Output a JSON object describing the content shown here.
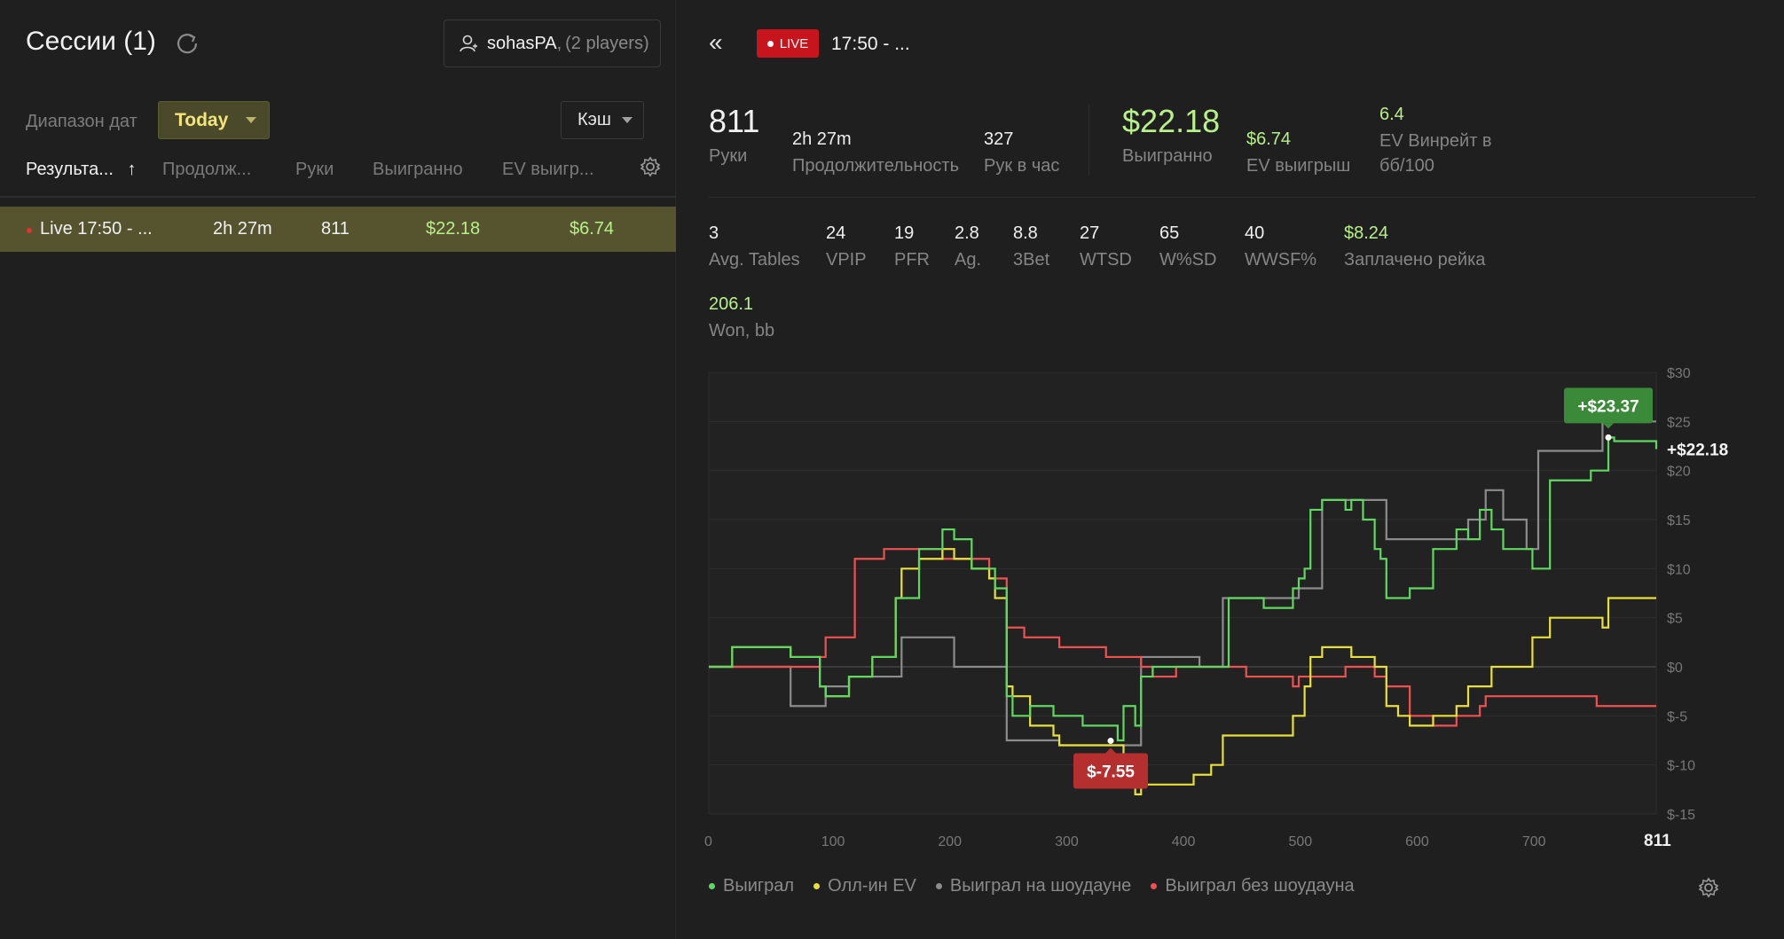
{
  "sidebar": {
    "title": "Сессии (1)",
    "player_name": "sohasPA",
    "player_count": "(2 players)",
    "date_range_label": "Диапазон дат",
    "date_range_value": "Today",
    "game_type": "Кэш",
    "columns": [
      "Результа...",
      "Продолж...",
      "Руки",
      "Выигранно",
      "EV выигр..."
    ],
    "sort_arrow": "↑",
    "rows": [
      {
        "session": "Live 17:50 - ...",
        "duration": "2h 27m",
        "hands": "811",
        "won": "$22.18",
        "ev_won": "$6.74"
      }
    ]
  },
  "header": {
    "back": "«",
    "live_label": "LIVE",
    "session_title": "17:50 - ..."
  },
  "stats": {
    "hands": {
      "value": "811",
      "label": "Руки"
    },
    "duration": {
      "value": "2h 27m",
      "label": "Продолжительность"
    },
    "hands_per_hour": {
      "value": "327",
      "label": "Рук в час"
    },
    "won": {
      "value": "$22.18",
      "label": "Выигранно"
    },
    "ev_won": {
      "value": "$6.74",
      "label": "EV выигрыш"
    },
    "ev_winrate": {
      "value": "6.4",
      "label": "EV Винрейт в бб/100"
    },
    "avg_tables": {
      "value": "3",
      "label": "Avg. Tables"
    },
    "vpip": {
      "value": "24",
      "label": "VPIP"
    },
    "pfr": {
      "value": "19",
      "label": "PFR"
    },
    "ag": {
      "value": "2.8",
      "label": "Ag."
    },
    "threebet": {
      "value": "8.8",
      "label": "3Bet"
    },
    "wtsd": {
      "value": "27",
      "label": "WTSD"
    },
    "wsd": {
      "value": "65",
      "label": "W%SD"
    },
    "wwsf": {
      "value": "40",
      "label": "WWSF%"
    },
    "rake": {
      "value": "$8.24",
      "label": "Заплачено рейка"
    },
    "won_bb": {
      "value": "206.1",
      "label": "Won, bb"
    }
  },
  "legend": [
    {
      "name": "Выиграл",
      "color": "#5fd860"
    },
    {
      "name": "Олл-ин EV",
      "color": "#e8e03a"
    },
    {
      "name": "Выиграл на шоудауне",
      "color": "#8c8c8c"
    },
    {
      "name": "Выиграл без шоудауна",
      "color": "#ef5050"
    }
  ],
  "chart_data": {
    "type": "line",
    "x_ticks": [
      0,
      100,
      200,
      300,
      400,
      500,
      600,
      700,
      811
    ],
    "y_tick_labels": [
      "$30",
      "$25",
      "$20",
      "$15",
      "$10",
      "$5",
      "$0",
      "$-5",
      "$-10",
      "$-15"
    ],
    "ylim": [
      -15,
      30
    ],
    "xlim": [
      0,
      811
    ],
    "max_label": "+$23.37",
    "min_label": "$-7.55",
    "final_label": "+$22.18",
    "max_point": {
      "x": 770,
      "y": 23.37
    },
    "min_point": {
      "x": 344,
      "y": -7.55
    },
    "series": [
      {
        "name": "Выиграл",
        "color": "#5fd860",
        "x": [
          0,
          20,
          40,
          70,
          90,
          95,
          100,
          120,
          140,
          160,
          165,
          180,
          200,
          210,
          225,
          240,
          245,
          255,
          260,
          275,
          295,
          300,
          320,
          340,
          350,
          355,
          365,
          370,
          380,
          395,
          415,
          430,
          440,
          445,
          460,
          475,
          500,
          505,
          510,
          515,
          525,
          545,
          550,
          560,
          570,
          575,
          580,
          590,
          600,
          620,
          640,
          650,
          660,
          670,
          680,
          700,
          705,
          720,
          735,
          755,
          765,
          770,
          775,
          790,
          800,
          811
        ],
        "y": [
          0,
          2,
          2,
          1,
          1,
          -2,
          -3,
          -1,
          1,
          7,
          7,
          12,
          14,
          13,
          10,
          10,
          8,
          -3,
          -5,
          -4,
          -5,
          -5,
          -6,
          -6,
          -7.5,
          -4,
          -6,
          -1,
          0,
          0,
          0,
          0,
          0,
          7,
          7,
          6,
          8,
          9,
          10,
          16,
          17,
          16,
          17,
          15,
          12,
          11,
          7,
          7,
          8,
          12,
          14,
          13,
          16,
          14,
          12,
          12,
          10,
          19,
          19,
          20,
          20,
          23.37,
          23,
          23,
          23,
          22.18
        ]
      },
      {
        "name": "Олл-ин EV",
        "color": "#e8e03a",
        "x": [
          0,
          20,
          40,
          70,
          90,
          95,
          100,
          120,
          140,
          160,
          165,
          180,
          200,
          210,
          225,
          240,
          245,
          255,
          260,
          275,
          295,
          300,
          320,
          340,
          350,
          355,
          365,
          370,
          380,
          395,
          415,
          430,
          440,
          445,
          460,
          475,
          500,
          505,
          510,
          515,
          525,
          545,
          550,
          560,
          570,
          575,
          580,
          590,
          600,
          620,
          640,
          650,
          660,
          670,
          680,
          700,
          705,
          720,
          735,
          755,
          765,
          770,
          775,
          790,
          800,
          811
        ],
        "y": [
          0,
          2,
          2,
          1,
          1,
          -2,
          -3,
          -1,
          1,
          7,
          10,
          11,
          12,
          11,
          10,
          9,
          7,
          -2,
          -3,
          -6,
          -7,
          -8,
          -8,
          -8,
          -8,
          -12,
          -13,
          -12,
          -12,
          -12,
          -11,
          -10,
          -7,
          -7,
          -7,
          -7,
          -5,
          -5,
          -2,
          1,
          2,
          2,
          1,
          1,
          0,
          0,
          -4,
          -5,
          -6,
          -5,
          -4,
          -2,
          -2,
          0,
          0,
          0,
          3,
          5,
          5,
          5,
          4,
          7,
          7,
          7,
          7,
          7
        ],
        "note": "approximate"
      },
      {
        "name": "Выиграл на шоудауне",
        "color": "#8c8c8c",
        "x": [
          0,
          60,
          70,
          90,
          100,
          120,
          160,
          165,
          180,
          200,
          210,
          250,
          255,
          285,
          300,
          340,
          350,
          370,
          380,
          420,
          440,
          465,
          480,
          500,
          505,
          510,
          525,
          560,
          570,
          580,
          600,
          620,
          650,
          660,
          665,
          680,
          690,
          700,
          710,
          740,
          765,
          811
        ],
        "y": [
          0,
          0,
          -4,
          -4,
          -2,
          -1,
          -1,
          3,
          3,
          3,
          0,
          0,
          -7.5,
          -7.5,
          -8,
          -8,
          -8,
          1,
          1,
          0,
          7,
          7,
          7,
          7,
          8,
          8,
          17,
          17,
          17,
          13,
          13,
          13,
          15,
          15,
          18,
          15,
          15,
          12,
          22,
          22,
          25,
          25
        ],
        "note": "approximate"
      },
      {
        "name": "Выиграл без шоудауна",
        "color": "#ef5050",
        "x": [
          0,
          60,
          70,
          90,
          95,
          100,
          120,
          125,
          140,
          150,
          180,
          200,
          210,
          240,
          255,
          270,
          285,
          300,
          320,
          340,
          355,
          370,
          380,
          400,
          420,
          445,
          460,
          475,
          500,
          505,
          515,
          545,
          560,
          570,
          580,
          600,
          620,
          640,
          660,
          665,
          680,
          700,
          720,
          740,
          760,
          780,
          800,
          811
        ],
        "y": [
          0,
          0,
          0,
          0,
          1,
          3,
          3,
          11,
          11,
          12,
          12,
          11,
          11,
          9,
          4,
          3,
          3,
          2,
          2,
          1,
          1,
          0,
          -1,
          0,
          0,
          0,
          -1,
          -1,
          -2,
          -1,
          -1,
          0,
          0,
          -1,
          -2,
          -5,
          -6,
          -5,
          -4,
          -3,
          -3,
          -3,
          -3,
          -3,
          -4,
          -4,
          -4,
          -4
        ],
        "note": "approximate"
      }
    ]
  }
}
